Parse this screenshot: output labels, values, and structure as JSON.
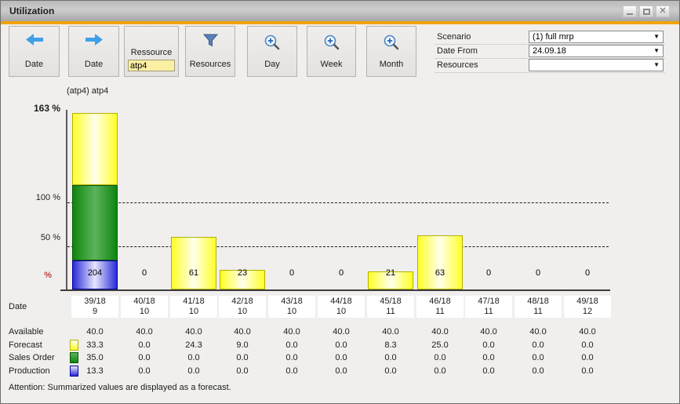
{
  "window": {
    "title": "Utilization"
  },
  "toolbar": {
    "buttons": [
      {
        "label": "Date",
        "icon": "arrow-left"
      },
      {
        "label": "Date",
        "icon": "arrow-right"
      },
      {
        "label": "Ressource",
        "input": "atp4"
      },
      {
        "label": "Resources",
        "icon": "filter"
      },
      {
        "label": "Day",
        "icon": "zoom-in"
      },
      {
        "label": "Week",
        "icon": "zoom-in"
      },
      {
        "label": "Month",
        "icon": "zoom-in"
      }
    ],
    "form": [
      {
        "label": "Scenario",
        "value": "(1) full mrp"
      },
      {
        "label": "Date From",
        "value": "24.09.18"
      },
      {
        "label": "Resources",
        "value": ""
      }
    ]
  },
  "chart_data": {
    "type": "bar",
    "title": "(atp4) atp4",
    "ylabel": "%",
    "y_axis": {
      "max_label": "163 %",
      "tick_100": "100 %",
      "tick_50": "50 %",
      "unit": "%"
    },
    "available_capacity": 40,
    "legend_position": "left-table",
    "grid": "dashed-horizontal-at-50-and-100",
    "categories": [
      {
        "week": "39/18",
        "month": "9"
      },
      {
        "week": "40/18",
        "month": "10"
      },
      {
        "week": "41/18",
        "month": "10"
      },
      {
        "week": "42/18",
        "month": "10"
      },
      {
        "week": "43/18",
        "month": "10"
      },
      {
        "week": "44/18",
        "month": "10"
      },
      {
        "week": "45/18",
        "month": "11"
      },
      {
        "week": "46/18",
        "month": "11"
      },
      {
        "week": "47/18",
        "month": "11"
      },
      {
        "week": "48/18",
        "month": "11"
      },
      {
        "week": "49/18",
        "month": "12"
      }
    ],
    "utilization_percent": [
      "204",
      "0",
      "61",
      "23",
      "0",
      "0",
      "21",
      "63",
      "0",
      "0",
      "0"
    ],
    "series": [
      {
        "name": "Available",
        "values": [
          "40.0",
          "40.0",
          "40.0",
          "40.0",
          "40.0",
          "40.0",
          "40.0",
          "40.0",
          "40.0",
          "40.0",
          "40.0"
        ]
      },
      {
        "name": "Forecast",
        "values": [
          "33.3",
          "0.0",
          "24.3",
          "9.0",
          "0.0",
          "0.0",
          "8.3",
          "25.0",
          "0.0",
          "0.0",
          "0.0"
        ]
      },
      {
        "name": "Sales Order",
        "values": [
          "35.0",
          "0.0",
          "0.0",
          "0.0",
          "0.0",
          "0.0",
          "0.0",
          "0.0",
          "0.0",
          "0.0",
          "0.0"
        ]
      },
      {
        "name": "Production",
        "values": [
          "13.3",
          "0.0",
          "0.0",
          "0.0",
          "0.0",
          "0.0",
          "0.0",
          "0.0",
          "0.0",
          "0.0",
          "0.0"
        ]
      }
    ]
  },
  "table": {
    "date_label": "Date"
  },
  "footer": {
    "attention": "Attention: Summarized values are displayed as a forecast."
  },
  "colors": {
    "accent": "#f2a30a",
    "forecast": {
      "edge": "#ffff28",
      "center": "#ffffec",
      "border": "#b2b200"
    },
    "sales_order": {
      "edge": "#0f860f",
      "center": "#5cb45c",
      "border": "#085808"
    },
    "production": {
      "edge": "#2a2ad8",
      "center": "#e6e6ff",
      "border": "#0000a0"
    },
    "percent_label": "#c83c3c"
  }
}
